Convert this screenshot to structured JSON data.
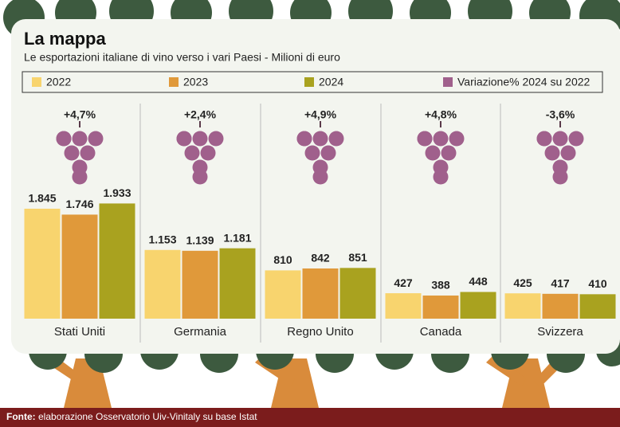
{
  "chart_data": {
    "type": "bar",
    "title": "La mappa",
    "subtitle": "Le esportazioni italiane di vino verso i vari Paesi - Milioni di euro",
    "categories": [
      "Stati Uniti",
      "Germania",
      "Regno Unito",
      "Canada",
      "Svizzera"
    ],
    "series": [
      {
        "name": "2022",
        "color": "#f8d46e",
        "values": [
          1845,
          1153,
          810,
          427,
          425
        ],
        "value_labels": [
          "1.845",
          "1.153",
          "810",
          "427",
          "425"
        ]
      },
      {
        "name": "2023",
        "color": "#e0993a",
        "values": [
          1746,
          1139,
          842,
          388,
          417
        ],
        "value_labels": [
          "1.746",
          "1.139",
          "842",
          "388",
          "417"
        ]
      },
      {
        "name": "2024",
        "color": "#a9a21f",
        "values": [
          1933,
          1181,
          851,
          448,
          410
        ],
        "value_labels": [
          "1.933",
          "1.181",
          "851",
          "448",
          "410"
        ]
      }
    ],
    "variation": {
      "name": "Variazione% 2024 su 2022",
      "color": "#a0608c",
      "values": [
        4.7,
        2.4,
        4.9,
        4.8,
        -3.6
      ],
      "value_labels": [
        "+4,7%",
        "+2,4%",
        "+4,9%",
        "+4,8%",
        "-3,6%"
      ]
    },
    "source_label": "Fonte:",
    "source": "elaborazione Osservatorio Uiv-Vinitaly su base Istat"
  }
}
